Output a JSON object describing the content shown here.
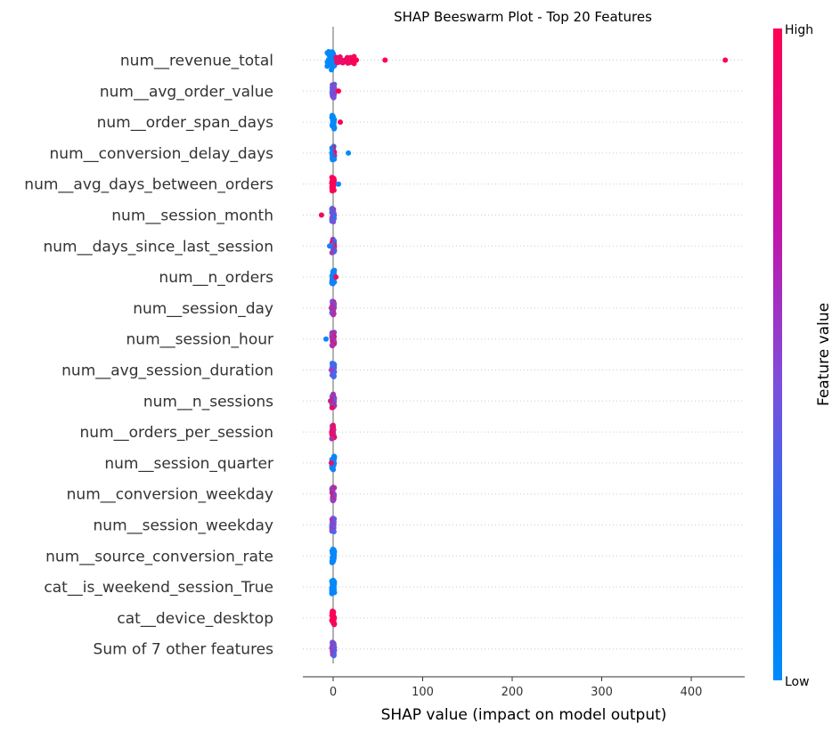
{
  "chart_data": {
    "type": "scatter",
    "subtype": "beeswarm",
    "title": "SHAP Beeswarm Plot - Top 20 Features",
    "xlabel": "SHAP value (impact on model output)",
    "xlim": [
      -33,
      460
    ],
    "xticks": [
      0,
      100,
      200,
      300,
      400
    ],
    "grid": "horizontal-dotted",
    "zero_line": true,
    "features": [
      "num__revenue_total",
      "num__avg_order_value",
      "num__order_span_days",
      "num__conversion_delay_days",
      "num__avg_days_between_orders",
      "num__session_month",
      "num__days_since_last_session",
      "num__n_orders",
      "num__session_day",
      "num__session_hour",
      "num__avg_session_duration",
      "num__n_sessions",
      "num__orders_per_session",
      "num__session_quarter",
      "num__conversion_weekday",
      "num__session_weekday",
      "num__source_conversion_rate",
      "cat__is_weekend_session_True",
      "cat__device_desktop",
      "Sum of 7 other features"
    ],
    "outliers": [
      {
        "feature": 0,
        "x": 438,
        "v": 1.0
      },
      {
        "feature": 0,
        "x": 58,
        "v": 1.0
      },
      {
        "feature": 0,
        "x": 26,
        "v": 1.0
      },
      {
        "feature": 0,
        "x": 22,
        "v": 1.0
      },
      {
        "feature": 0,
        "x": 17,
        "v": 0.95
      },
      {
        "feature": 0,
        "x": 13,
        "v": 0.95
      },
      {
        "feature": 0,
        "x": 9,
        "v": 0.9
      },
      {
        "feature": 0,
        "x": 6,
        "v": 0.9
      },
      {
        "feature": 1,
        "x": 6,
        "v": 1.0
      },
      {
        "feature": 2,
        "x": 8,
        "v": 1.0
      },
      {
        "feature": 3,
        "x": 17,
        "v": 0.0
      },
      {
        "feature": 4,
        "x": 6,
        "v": 0.05
      },
      {
        "feature": 5,
        "x": -13,
        "v": 0.95
      },
      {
        "feature": 6,
        "x": -4,
        "v": 0.1
      },
      {
        "feature": 7,
        "x": 3,
        "v": 0.95
      },
      {
        "feature": 8,
        "x": -2,
        "v": 0.7
      },
      {
        "feature": 9,
        "x": -8,
        "v": 0.05
      },
      {
        "feature": 10,
        "x": -2,
        "v": 0.6
      },
      {
        "feature": 11,
        "x": -3,
        "v": 0.8
      },
      {
        "feature": 13,
        "x": -2,
        "v": 0.9
      }
    ],
    "colorbar": {
      "label": "Feature value",
      "high_label": "High",
      "low_label": "Low",
      "low_color": "#008bfb",
      "mid_color": "#7c4fdd",
      "high_color": "#ff0052"
    }
  }
}
